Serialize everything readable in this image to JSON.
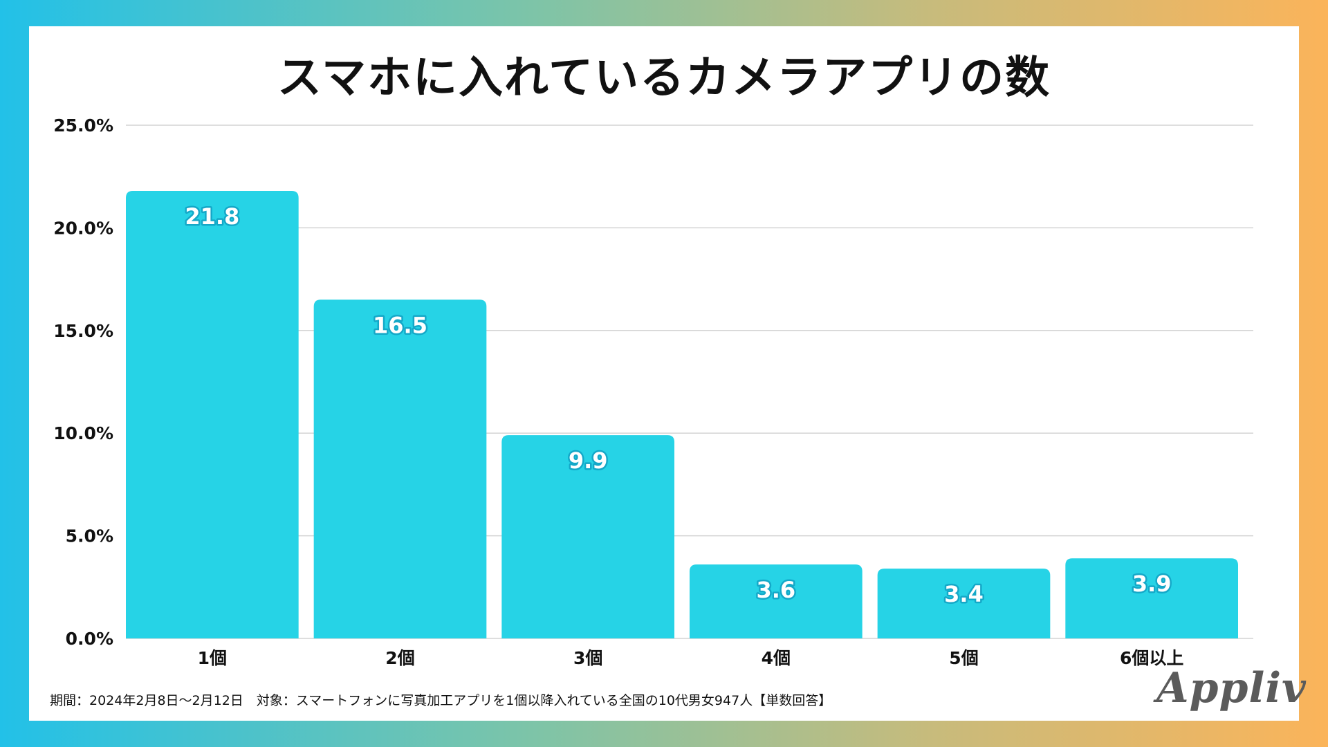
{
  "chart_data": {
    "type": "bar",
    "title": "スマホに入れているカメラアプリの数",
    "categories": [
      "1個",
      "2個",
      "3個",
      "4個",
      "5個",
      "6個以上"
    ],
    "values": [
      21.8,
      16.5,
      9.9,
      3.6,
      3.4,
      3.9
    ],
    "value_labels": [
      "21.8",
      "16.5",
      "9.9",
      "3.6",
      "3.4",
      "3.9"
    ],
    "ylim": [
      0,
      25
    ],
    "yticks": [
      0,
      5,
      10,
      15,
      20,
      25
    ],
    "ytick_labels": [
      "0.0%",
      "5.0%",
      "10.0%",
      "15.0%",
      "20.0%",
      "25.0%"
    ],
    "xlabel": "",
    "ylabel": "",
    "grid": true,
    "bar_color": "#26d3e6",
    "grid_color": "#d3d3d3",
    "label_outline_color": "#14a8c8"
  },
  "footnote": "期間：2024年2月8日〜2月12日　対象：スマートフォンに写真加工アプリを1個以降入れている全国の10代男女947人【単数回答】",
  "brand": "Appliv"
}
